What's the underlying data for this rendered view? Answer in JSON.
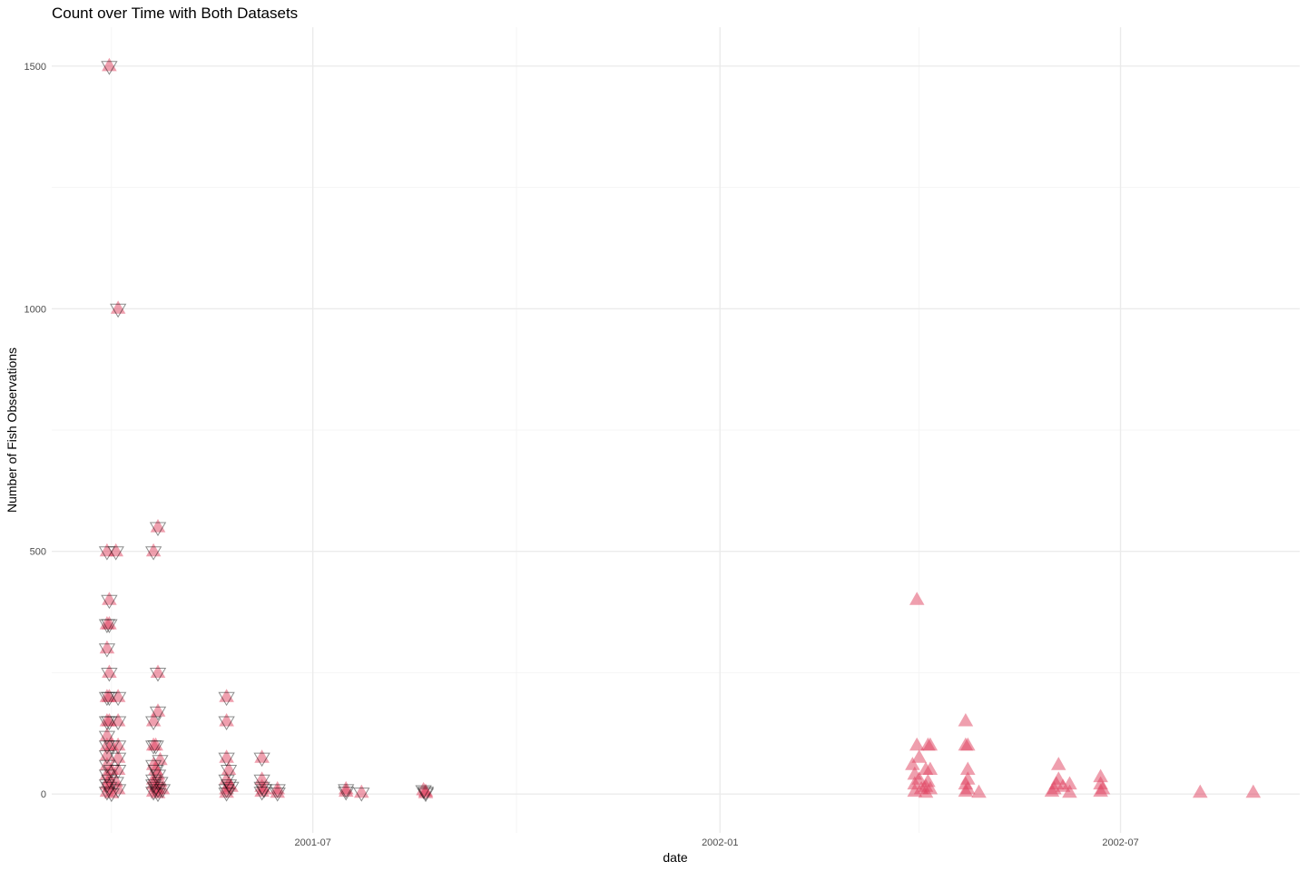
{
  "chart_data": {
    "type": "scatter",
    "title": "Count over Time with Both Datasets",
    "xlabel": "date",
    "ylabel": "Number of Fish Observations",
    "x_ticks": [
      "2001-07",
      "2002-01",
      "2002-07"
    ],
    "y_ticks": [
      0,
      500,
      1000,
      1500
    ],
    "xlim": [
      "2001-03-05",
      "2002-09-20"
    ],
    "ylim": [
      -80,
      1580
    ],
    "grid": true,
    "legend": "none",
    "colors": {
      "fill": "#e0405e",
      "outline": "#000000",
      "grid": "#ebebeb"
    },
    "series": [
      {
        "marker": "triangle-up",
        "points": [
          [
            "2001-03-31",
            1500
          ],
          [
            "2001-04-04",
            1000
          ],
          [
            "2001-03-30",
            500
          ],
          [
            "2001-04-03",
            500
          ],
          [
            "2001-03-31",
            400
          ],
          [
            "2001-03-30",
            350
          ],
          [
            "2001-03-31",
            350
          ],
          [
            "2001-03-30",
            300
          ],
          [
            "2001-03-31",
            250
          ],
          [
            "2001-03-30",
            200
          ],
          [
            "2001-03-31",
            200
          ],
          [
            "2001-04-04",
            200
          ],
          [
            "2001-03-30",
            150
          ],
          [
            "2001-03-31",
            150
          ],
          [
            "2001-04-04",
            150
          ],
          [
            "2001-03-30",
            120
          ],
          [
            "2001-03-30",
            100
          ],
          [
            "2001-04-01",
            100
          ],
          [
            "2001-04-04",
            100
          ],
          [
            "2001-03-30",
            80
          ],
          [
            "2001-04-04",
            75
          ],
          [
            "2001-03-30",
            60
          ],
          [
            "2001-04-01",
            50
          ],
          [
            "2001-04-04",
            50
          ],
          [
            "2001-03-30",
            40
          ],
          [
            "2001-03-31",
            30
          ],
          [
            "2001-04-03",
            25
          ],
          [
            "2001-03-30",
            20
          ],
          [
            "2001-03-31",
            15
          ],
          [
            "2001-04-04",
            10
          ],
          [
            "2001-03-30",
            5
          ],
          [
            "2001-04-01",
            2
          ],
          [
            "2001-04-20",
            500
          ],
          [
            "2001-04-22",
            550
          ],
          [
            "2001-04-22",
            250
          ],
          [
            "2001-04-22",
            170
          ],
          [
            "2001-04-20",
            150
          ],
          [
            "2001-04-20",
            100
          ],
          [
            "2001-04-21",
            100
          ],
          [
            "2001-04-23",
            70
          ],
          [
            "2001-04-20",
            60
          ],
          [
            "2001-04-21",
            50
          ],
          [
            "2001-04-22",
            40
          ],
          [
            "2001-04-20",
            30
          ],
          [
            "2001-04-23",
            25
          ],
          [
            "2001-04-20",
            20
          ],
          [
            "2001-04-21",
            15
          ],
          [
            "2001-04-22",
            10
          ],
          [
            "2001-04-24",
            10
          ],
          [
            "2001-04-20",
            5
          ],
          [
            "2001-04-22",
            2
          ],
          [
            "2001-05-23",
            200
          ],
          [
            "2001-05-23",
            150
          ],
          [
            "2001-05-23",
            75
          ],
          [
            "2001-05-24",
            50
          ],
          [
            "2001-05-23",
            30
          ],
          [
            "2001-05-24",
            20
          ],
          [
            "2001-05-25",
            15
          ],
          [
            "2001-05-23",
            10
          ],
          [
            "2001-05-23",
            3
          ],
          [
            "2001-06-08",
            75
          ],
          [
            "2001-06-08",
            30
          ],
          [
            "2001-06-08",
            15
          ],
          [
            "2001-06-09",
            10
          ],
          [
            "2001-06-08",
            5
          ],
          [
            "2001-06-15",
            10
          ],
          [
            "2001-06-15",
            3
          ],
          [
            "2001-07-16",
            10
          ],
          [
            "2001-07-16",
            5
          ],
          [
            "2001-07-23",
            3
          ],
          [
            "2001-08-20",
            8
          ],
          [
            "2001-08-21",
            5
          ],
          [
            "2001-08-21",
            2
          ],
          [
            "2002-03-31",
            400
          ],
          [
            "2002-03-31",
            100
          ],
          [
            "2002-04-05",
            100
          ],
          [
            "2002-04-06",
            100
          ],
          [
            "2002-04-01",
            75
          ],
          [
            "2002-03-29",
            60
          ],
          [
            "2002-04-04",
            50
          ],
          [
            "2002-04-06",
            50
          ],
          [
            "2002-03-30",
            40
          ],
          [
            "2002-04-01",
            30
          ],
          [
            "2002-04-05",
            25
          ],
          [
            "2002-03-30",
            20
          ],
          [
            "2002-04-04",
            15
          ],
          [
            "2002-04-02",
            10
          ],
          [
            "2002-04-06",
            10
          ],
          [
            "2002-03-30",
            5
          ],
          [
            "2002-04-04",
            3
          ],
          [
            "2002-04-22",
            150
          ],
          [
            "2002-04-22",
            100
          ],
          [
            "2002-04-23",
            100
          ],
          [
            "2002-04-23",
            50
          ],
          [
            "2002-04-23",
            30
          ],
          [
            "2002-04-22",
            20
          ],
          [
            "2002-04-23",
            10
          ],
          [
            "2002-04-22",
            5
          ],
          [
            "2002-04-28",
            3
          ],
          [
            "2002-06-03",
            60
          ],
          [
            "2002-06-03",
            30
          ],
          [
            "2002-06-02",
            20
          ],
          [
            "2002-06-05",
            15
          ],
          [
            "2002-06-08",
            20
          ],
          [
            "2002-06-01",
            10
          ],
          [
            "2002-05-31",
            5
          ],
          [
            "2002-06-08",
            3
          ],
          [
            "2002-06-22",
            35
          ],
          [
            "2002-06-22",
            20
          ],
          [
            "2002-06-23",
            10
          ],
          [
            "2002-06-22",
            5
          ],
          [
            "2002-08-06",
            3
          ],
          [
            "2002-08-30",
            3
          ]
        ]
      },
      {
        "marker": "triangle-down",
        "points": [
          [
            "2001-03-31",
            1500
          ],
          [
            "2001-04-04",
            1000
          ],
          [
            "2001-03-30",
            500
          ],
          [
            "2001-04-03",
            500
          ],
          [
            "2001-03-31",
            400
          ],
          [
            "2001-03-30",
            350
          ],
          [
            "2001-03-31",
            350
          ],
          [
            "2001-03-30",
            300
          ],
          [
            "2001-03-31",
            250
          ],
          [
            "2001-03-30",
            200
          ],
          [
            "2001-03-31",
            200
          ],
          [
            "2001-04-04",
            200
          ],
          [
            "2001-03-30",
            150
          ],
          [
            "2001-03-31",
            150
          ],
          [
            "2001-04-04",
            150
          ],
          [
            "2001-03-30",
            120
          ],
          [
            "2001-03-30",
            100
          ],
          [
            "2001-04-01",
            100
          ],
          [
            "2001-04-04",
            100
          ],
          [
            "2001-03-30",
            80
          ],
          [
            "2001-04-04",
            75
          ],
          [
            "2001-03-30",
            60
          ],
          [
            "2001-04-01",
            50
          ],
          [
            "2001-04-04",
            50
          ],
          [
            "2001-03-30",
            40
          ],
          [
            "2001-03-31",
            30
          ],
          [
            "2001-04-03",
            25
          ],
          [
            "2001-03-30",
            20
          ],
          [
            "2001-03-31",
            15
          ],
          [
            "2001-04-04",
            10
          ],
          [
            "2001-03-30",
            5
          ],
          [
            "2001-04-01",
            2
          ],
          [
            "2001-04-20",
            500
          ],
          [
            "2001-04-22",
            550
          ],
          [
            "2001-04-22",
            250
          ],
          [
            "2001-04-22",
            170
          ],
          [
            "2001-04-20",
            150
          ],
          [
            "2001-04-20",
            100
          ],
          [
            "2001-04-21",
            100
          ],
          [
            "2001-04-23",
            70
          ],
          [
            "2001-04-20",
            60
          ],
          [
            "2001-04-21",
            50
          ],
          [
            "2001-04-22",
            40
          ],
          [
            "2001-04-20",
            30
          ],
          [
            "2001-04-23",
            25
          ],
          [
            "2001-04-20",
            20
          ],
          [
            "2001-04-21",
            15
          ],
          [
            "2001-04-22",
            10
          ],
          [
            "2001-04-24",
            10
          ],
          [
            "2001-04-20",
            5
          ],
          [
            "2001-04-22",
            2
          ],
          [
            "2001-05-23",
            200
          ],
          [
            "2001-05-23",
            150
          ],
          [
            "2001-05-23",
            75
          ],
          [
            "2001-05-24",
            50
          ],
          [
            "2001-05-23",
            30
          ],
          [
            "2001-05-24",
            20
          ],
          [
            "2001-05-25",
            15
          ],
          [
            "2001-05-23",
            10
          ],
          [
            "2001-05-23",
            3
          ],
          [
            "2001-06-08",
            75
          ],
          [
            "2001-06-08",
            30
          ],
          [
            "2001-06-08",
            15
          ],
          [
            "2001-06-09",
            10
          ],
          [
            "2001-06-08",
            5
          ],
          [
            "2001-06-15",
            10
          ],
          [
            "2001-06-15",
            3
          ],
          [
            "2001-07-16",
            10
          ],
          [
            "2001-07-16",
            5
          ],
          [
            "2001-07-23",
            3
          ],
          [
            "2001-08-20",
            8
          ],
          [
            "2001-08-21",
            5
          ],
          [
            "2001-08-21",
            2
          ]
        ]
      }
    ]
  }
}
